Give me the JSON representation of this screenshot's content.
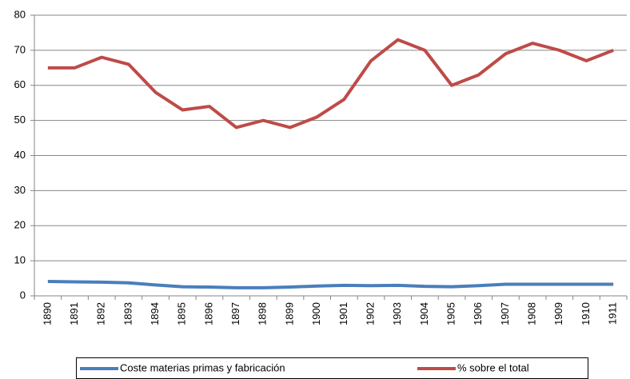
{
  "chart_data": {
    "type": "line",
    "categories": [
      "1890",
      "1891",
      "1892",
      "1893",
      "1894",
      "1895",
      "1896",
      "1897",
      "1898",
      "1899",
      "1900",
      "1901",
      "1902",
      "1903",
      "1904",
      "1905",
      "1906",
      "1907",
      "1908",
      "1909",
      "1910",
      "1911"
    ],
    "series": [
      {
        "name": "Coste materias primas y fabricación",
        "color": "#4a7ebb",
        "values": [
          4.1,
          4.0,
          3.9,
          3.7,
          3.1,
          2.6,
          2.5,
          2.3,
          2.3,
          2.5,
          2.8,
          3.0,
          2.9,
          3.0,
          2.7,
          2.6,
          2.9,
          3.3,
          3.3,
          3.3,
          3.3,
          3.3
        ]
      },
      {
        "name": "% sobre el total",
        "color": "#be4b48",
        "values": [
          65,
          65,
          68,
          66,
          58,
          53,
          54,
          48,
          50,
          48,
          51,
          56,
          67,
          73,
          70,
          60,
          63,
          69,
          72,
          70,
          67,
          70
        ]
      }
    ],
    "ylim": [
      0,
      80
    ],
    "yticks": [
      0,
      10,
      20,
      30,
      40,
      50,
      60,
      70,
      80
    ],
    "grid": true,
    "legend": "bottom"
  }
}
